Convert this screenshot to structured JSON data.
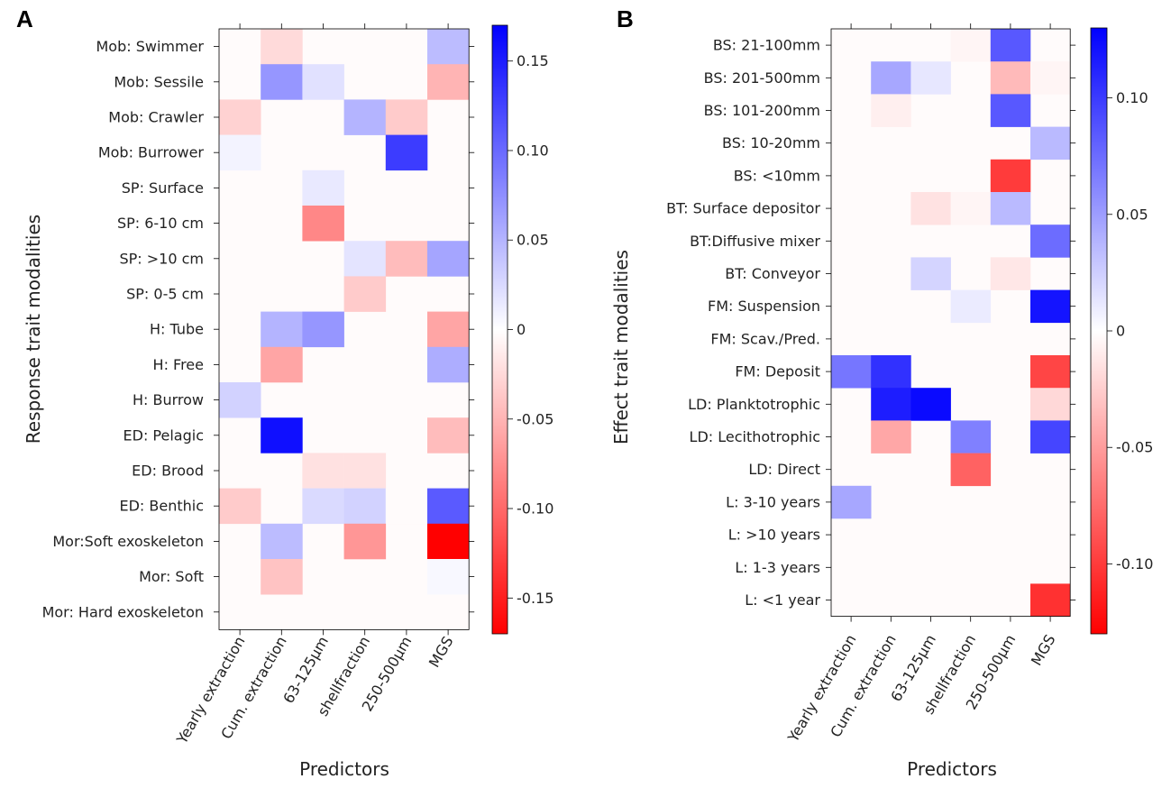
{
  "chart_data": [
    {
      "type": "heatmap",
      "panel_label": "A",
      "xlabel": "Predictors",
      "ylabel": "Response trait modalities",
      "columns": [
        "Yearly extraction",
        "Cum. extraction",
        "63-125µm",
        "shellfraction",
        "250-500µm",
        "MGS"
      ],
      "rows": [
        "Mob: Swimmer",
        "Mob: Sessile",
        "Mob: Crawler",
        "Mob: Burrower",
        "SP: Surface",
        "SP: 6-10 cm",
        "SP: >10 cm",
        "SP: 0-5 cm",
        "H: Tube",
        "H: Free",
        "H: Burrow",
        "ED: Pelagic",
        "ED: Brood",
        "ED: Benthic",
        "Mor:Soft exoskeleton",
        "Mor: Soft",
        "Mor: Hard exoskeleton"
      ],
      "values": [
        [
          0,
          -0.025,
          0,
          0,
          0,
          0.045
        ],
        [
          0,
          0.07,
          0.02,
          0,
          0,
          -0.05
        ],
        [
          -0.03,
          0,
          0,
          0.05,
          -0.035,
          0
        ],
        [
          0.008,
          0,
          0,
          0,
          0.13,
          0
        ],
        [
          0,
          0,
          0.015,
          0,
          0,
          0
        ],
        [
          0,
          0,
          -0.08,
          0,
          0,
          0
        ],
        [
          0,
          0,
          0,
          0.018,
          -0.045,
          0.06
        ],
        [
          0,
          0,
          0,
          -0.035,
          0,
          0
        ],
        [
          0,
          0.05,
          0.07,
          0,
          0,
          -0.06
        ],
        [
          0,
          -0.06,
          0,
          0,
          0,
          0.055
        ],
        [
          0.03,
          0,
          0,
          0,
          0,
          0
        ],
        [
          0,
          0.16,
          0,
          0,
          0,
          -0.045
        ],
        [
          0,
          0,
          -0.02,
          -0.02,
          0,
          0
        ],
        [
          -0.035,
          0,
          0.025,
          0.03,
          -0.003,
          0.11
        ],
        [
          0,
          0.045,
          0,
          -0.07,
          0,
          -0.17
        ],
        [
          0,
          -0.04,
          0,
          0,
          0,
          0.005
        ],
        [
          0,
          0,
          0,
          0,
          0,
          0
        ]
      ],
      "vlim": [
        -0.17,
        0.17
      ],
      "colorbar_ticks": [
        "0.15",
        "0.10",
        "0.05",
        "0",
        "-0.05",
        "-0.10",
        "-0.15"
      ],
      "colorbar_tick_values": [
        0.15,
        0.1,
        0.05,
        0,
        -0.05,
        -0.1,
        -0.15
      ],
      "colormap": {
        "negative": "#ff0000",
        "zero": "#ffffff",
        "positive": "#0000ff"
      }
    },
    {
      "type": "heatmap",
      "panel_label": "B",
      "xlabel": "Predictors",
      "ylabel": "Effect trait modalities",
      "columns": [
        "Yearly extraction",
        "Cum. extraction",
        "63-125µm",
        "shellfraction",
        "250-500µm",
        "MGS"
      ],
      "rows": [
        "BS: 21-100mm",
        "BS: 201-500mm",
        "BS: 101-200mm",
        "BS: 10-20mm",
        "BS: <10mm",
        "BT: Surface depositor",
        "BT:Diffusive mixer",
        "BT: Conveyor",
        "FM: Suspension",
        "FM: Scav./Pred.",
        "FM: Deposit",
        "LD: Planktotrophic",
        "LD: Lecithotrophic",
        "LD: Direct",
        "L: 3-10 years",
        "L: >10 years",
        "L: 1-3 years",
        "L: <1 year"
      ],
      "values": [
        [
          0,
          0,
          0,
          -0.005,
          0.085,
          0
        ],
        [
          0,
          0.045,
          0.012,
          0,
          -0.035,
          -0.005
        ],
        [
          0,
          -0.008,
          0,
          0,
          0.085,
          0
        ],
        [
          0,
          0,
          0,
          0,
          0,
          0.035
        ],
        [
          0,
          0,
          0,
          0,
          -0.1,
          0
        ],
        [
          0,
          0,
          -0.015,
          -0.005,
          0.035,
          0
        ],
        [
          0,
          0,
          0,
          0,
          0,
          0.075
        ],
        [
          0,
          0,
          0.022,
          0,
          -0.012,
          0
        ],
        [
          0,
          0,
          0,
          0.01,
          0,
          0.12
        ],
        [
          0,
          0,
          0,
          0,
          0,
          0
        ],
        [
          0.07,
          0.105,
          0,
          0,
          0,
          -0.095
        ],
        [
          0,
          0.115,
          0.125,
          0,
          0,
          -0.02
        ],
        [
          0,
          -0.045,
          0,
          0.065,
          0,
          0.095
        ],
        [
          0,
          0,
          0,
          -0.08,
          0,
          0
        ],
        [
          0.045,
          0,
          0,
          0,
          0,
          0
        ],
        [
          0,
          0,
          0,
          0,
          0,
          0
        ],
        [
          0,
          0,
          0,
          0,
          0,
          0
        ],
        [
          0,
          0,
          0,
          0,
          0,
          -0.105
        ]
      ],
      "vlim": [
        -0.13,
        0.13
      ],
      "colorbar_ticks": [
        "0.10",
        "0.05",
        "0",
        "-0.05",
        "-0.10"
      ],
      "colorbar_tick_values": [
        0.1,
        0.05,
        0,
        -0.05,
        -0.1
      ],
      "colormap": {
        "negative": "#ff0000",
        "zero": "#ffffff",
        "positive": "#0000ff"
      }
    }
  ]
}
